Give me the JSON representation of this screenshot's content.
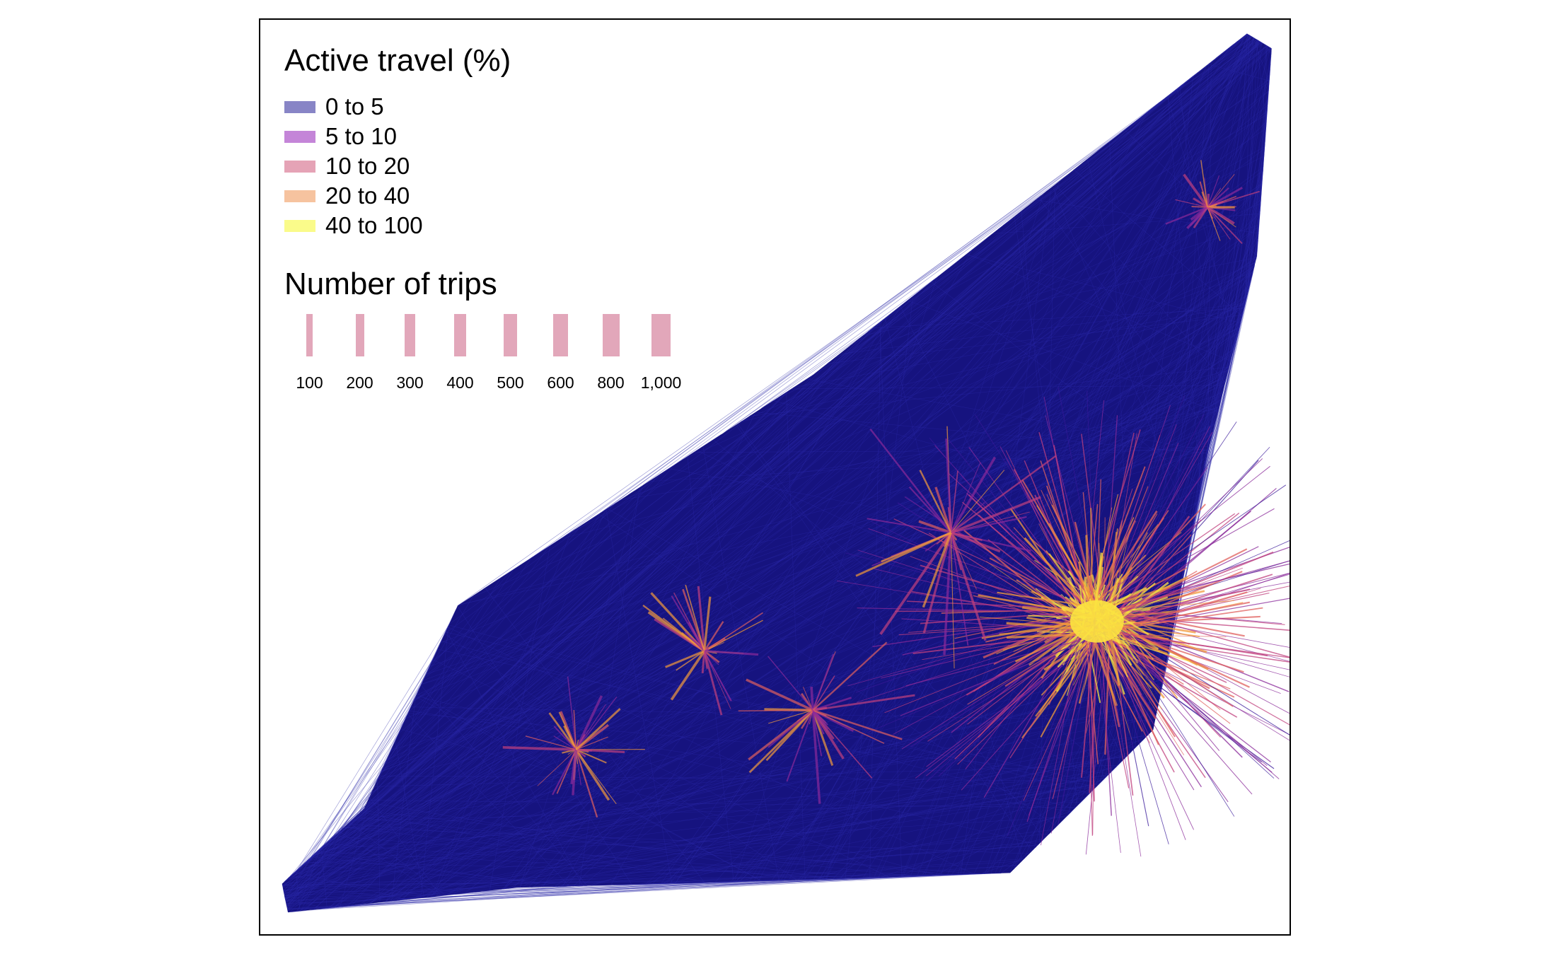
{
  "legend": {
    "active_travel": {
      "title": "Active travel (%)",
      "items": [
        {
          "label": "0 to 5",
          "color": "#8885c6"
        },
        {
          "label": "5 to 10",
          "color": "#c485d8"
        },
        {
          "label": "10 to 20",
          "color": "#e5a3b6"
        },
        {
          "label": "20 to 40",
          "color": "#f6c39f"
        },
        {
          "label": "40 to 100",
          "color": "#fafb8a"
        }
      ]
    },
    "trips": {
      "title": "Number of trips",
      "color": "#e2a7ba",
      "items": [
        {
          "label": "100",
          "value": 100
        },
        {
          "label": "200",
          "value": 200
        },
        {
          "label": "300",
          "value": 300
        },
        {
          "label": "400",
          "value": 400
        },
        {
          "label": "500",
          "value": 500
        },
        {
          "label": "600",
          "value": 600
        },
        {
          "label": "800",
          "value": 800
        },
        {
          "label": "1,000",
          "value": 1000
        }
      ]
    }
  },
  "map": {
    "background_color": "#16137f",
    "flow_palette": [
      "#3a1a9a",
      "#8a2a9a",
      "#c0407e",
      "#e0605e",
      "#f29a3c",
      "#fbe340"
    ]
  }
}
